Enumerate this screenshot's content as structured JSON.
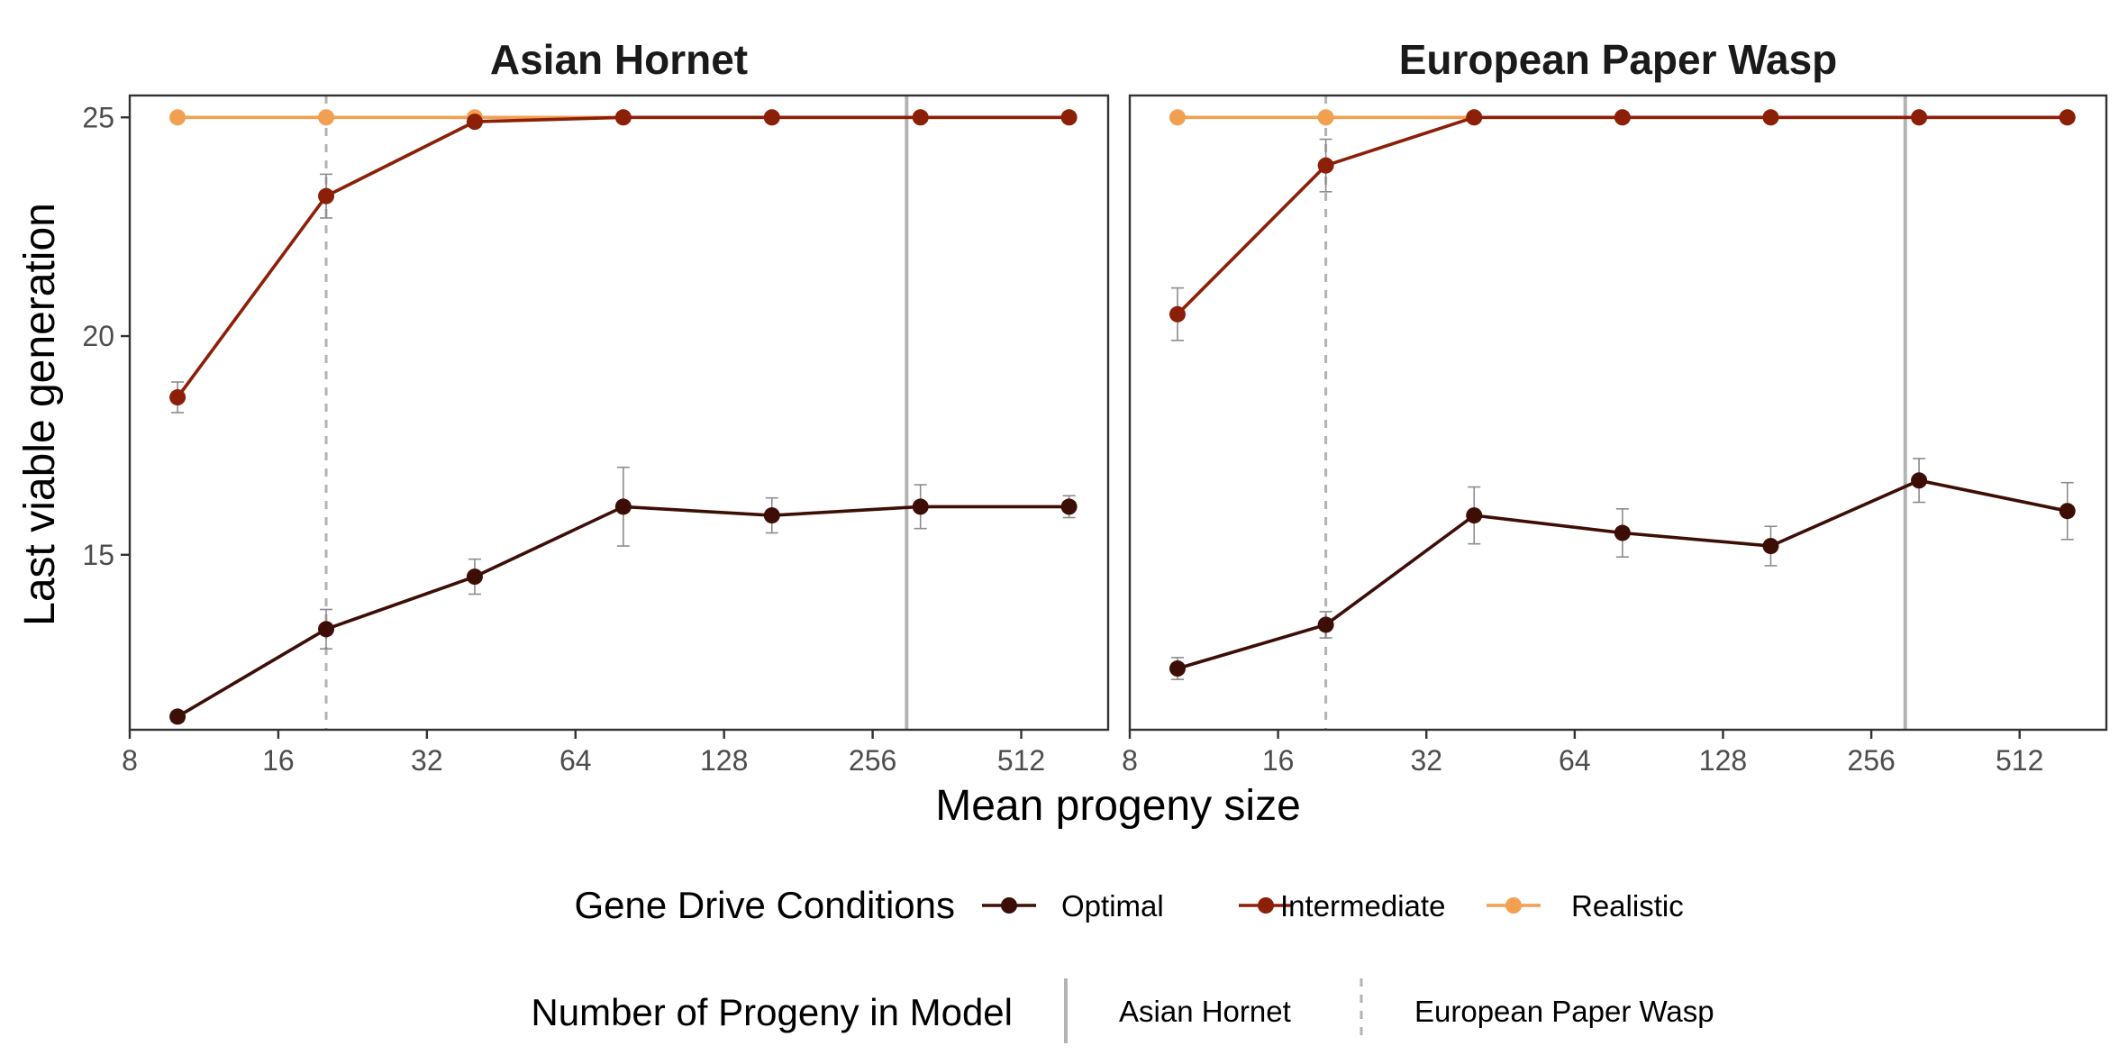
{
  "chart_data": {
    "type": "line",
    "x_scale": "log2",
    "x_ticks": [
      8,
      16,
      32,
      64,
      128,
      256,
      512
    ],
    "x_tick_labels": [
      "8",
      "16",
      "32",
      "64",
      "128",
      "256",
      "512"
    ],
    "y_ticks": [
      15,
      20,
      25
    ],
    "y_tick_labels": [
      "15",
      "20",
      "25"
    ],
    "xlim": [
      8,
      768
    ],
    "ylim": [
      11,
      25.5
    ],
    "xlabel": "Mean progeny size",
    "ylabel": "Last viable generation",
    "grid": false,
    "legend_position": "bottom",
    "colors": {
      "Optimal": "#3d0e05",
      "Intermediate": "#8c1f08",
      "Realistic": "#f0a050",
      "reference": "#b3b3b3",
      "errorbar": "#8c8c8c"
    },
    "legend": {
      "title": "Gene Drive Conditions",
      "entries": [
        "Optimal",
        "Intermediate",
        "Realistic"
      ]
    },
    "reference_legend": {
      "title": "Number of Progeny in Model",
      "entries": [
        {
          "label": "Asian Hornet",
          "style": "solid"
        },
        {
          "label": "European Paper Wasp",
          "style": "dashed"
        }
      ]
    },
    "panels": [
      {
        "title": "Asian Hornet",
        "x": [
          10,
          20,
          40,
          80,
          160,
          320,
          640
        ],
        "reference_lines": [
          {
            "x": 20,
            "style": "dashed"
          },
          {
            "x": 300,
            "style": "solid"
          }
        ],
        "series": [
          {
            "name": "Optimal",
            "values": [
              11.3,
              13.3,
              14.5,
              16.1,
              15.9,
              16.1,
              16.1
            ],
            "err": [
              0.12,
              0.45,
              0.4,
              0.9,
              0.4,
              0.5,
              0.25
            ]
          },
          {
            "name": "Intermediate",
            "values": [
              18.6,
              23.2,
              24.9,
              25,
              25,
              25,
              25
            ],
            "err": [
              0.35,
              0.5,
              0,
              0,
              0,
              0,
              0
            ]
          },
          {
            "name": "Realistic",
            "values": [
              25,
              25,
              25,
              25,
              25,
              25,
              25
            ],
            "err": [
              0,
              0,
              0,
              0,
              0,
              0,
              0
            ]
          }
        ]
      },
      {
        "title": "European Paper Wasp",
        "x": [
          10,
          20,
          40,
          80,
          160,
          320,
          640
        ],
        "reference_lines": [
          {
            "x": 20,
            "style": "dashed"
          },
          {
            "x": 300,
            "style": "solid"
          }
        ],
        "series": [
          {
            "name": "Optimal",
            "values": [
              12.4,
              13.4,
              15.9,
              15.5,
              15.2,
              16.7,
              16.0
            ],
            "err": [
              0.25,
              0.3,
              0.65,
              0.55,
              0.45,
              0.5,
              0.65
            ]
          },
          {
            "name": "Intermediate",
            "values": [
              20.5,
              23.9,
              25,
              25,
              25,
              25,
              25
            ],
            "err": [
              0.6,
              0.6,
              0,
              0,
              0,
              0,
              0
            ]
          },
          {
            "name": "Realistic",
            "values": [
              25,
              25,
              25,
              25,
              25,
              25,
              25
            ],
            "err": [
              0,
              0,
              0,
              0,
              0,
              0,
              0
            ]
          }
        ]
      }
    ]
  }
}
